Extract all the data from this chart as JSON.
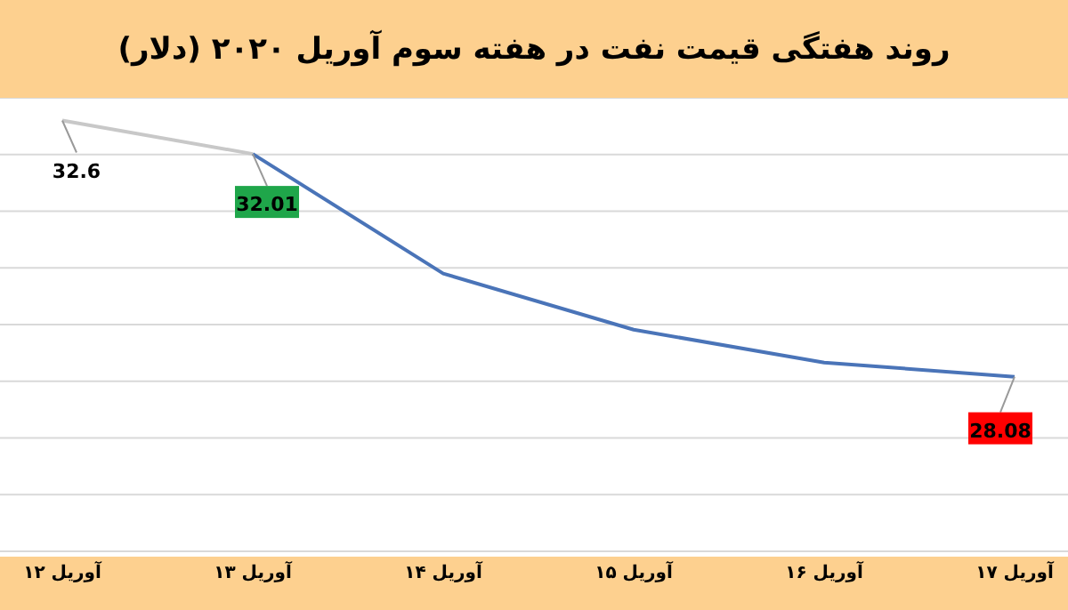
{
  "chart_data": {
    "type": "line",
    "title": "روند هفتگی قیمت نفت در هفته سوم آوریل ۲۰۲۰ (دلار)",
    "categories": [
      "۱۲ آوریل",
      "۱۳ آوریل",
      "۱۴ آوریل",
      "۱۵ آوریل",
      "۱۶ آوریل",
      "۱۷ آوریل"
    ],
    "series": [
      {
        "color": "#c8c8c8",
        "values": [
          32.6,
          32.01,
          null,
          null,
          null,
          null
        ],
        "value_labels": [
          "32.6",
          null,
          null,
          null,
          null,
          null
        ]
      },
      {
        "color": "#4a74b8",
        "values": [
          null,
          32.01,
          29.9,
          28.91,
          28.33,
          28.08
        ],
        "value_labels": [
          null,
          "32.01",
          null,
          null,
          null,
          "28.08"
        ]
      }
    ],
    "ylim": [
      25,
      33
    ],
    "yticks": [
      {
        "value": 25,
        "label": null
      },
      {
        "value": 26,
        "label": null
      },
      {
        "value": 27,
        "label": null
      },
      {
        "value": 28,
        "label": null
      },
      {
        "value": 29,
        "label": null
      },
      {
        "value": 30,
        "label": null
      },
      {
        "value": 31,
        "label": null
      },
      {
        "value": 32,
        "label": null
      },
      {
        "value": 33,
        "label": null
      }
    ],
    "grid": "y",
    "tick_labels": "x",
    "marker": "none",
    "line_style": "solid"
  }
}
